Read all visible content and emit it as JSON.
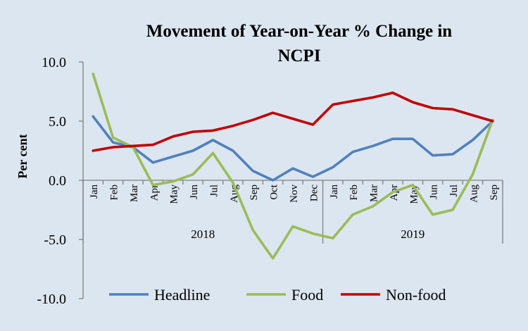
{
  "chart_data": {
    "type": "line",
    "title_line1": "Movement of Year-on-Year % Change in",
    "title_line2": "NCPI",
    "ylabel": "Per cent",
    "xlabel": "",
    "ylim": [
      -10,
      10
    ],
    "y_ticks": [
      "10.0",
      "5.0",
      "0.0",
      "-5.0",
      "-10.0"
    ],
    "y_tick_values": [
      10,
      5,
      0,
      -5,
      -10
    ],
    "categories": [
      "Jan",
      "Feb",
      "Mar",
      "Apr",
      "May",
      "Jun",
      "Jul",
      "Aug",
      "Sep",
      "Oct",
      "Nov",
      "Dec",
      "Jan",
      "Feb",
      "Mar",
      "Apr",
      "May",
      "Jun",
      "Jul",
      "Aug",
      "Sep"
    ],
    "year_groups": [
      {
        "label": "2018",
        "start": 0,
        "end": 11
      },
      {
        "label": "2019",
        "start": 12,
        "end": 20
      }
    ],
    "series": [
      {
        "name": "Headline",
        "color": "#4f81bd",
        "values": [
          5.4,
          3.2,
          2.8,
          1.5,
          2.0,
          2.5,
          3.4,
          2.5,
          0.8,
          0.0,
          1.0,
          0.3,
          1.1,
          2.4,
          2.9,
          3.5,
          3.5,
          2.1,
          2.2,
          3.4,
          5.0
        ]
      },
      {
        "name": "Food",
        "color": "#9bbb59",
        "values": [
          9.0,
          3.6,
          2.8,
          -0.4,
          -0.1,
          0.5,
          2.3,
          -0.2,
          -4.2,
          -6.6,
          -3.9,
          -4.5,
          -4.9,
          -2.9,
          -2.2,
          -1.0,
          -0.4,
          -2.9,
          -2.5,
          0.5,
          5.1
        ]
      },
      {
        "name": "Non-food",
        "color": "#c00000",
        "values": [
          2.5,
          2.8,
          2.9,
          3.0,
          3.7,
          4.1,
          4.2,
          4.6,
          5.1,
          5.7,
          5.2,
          4.7,
          6.4,
          6.7,
          7.0,
          7.4,
          6.6,
          6.1,
          6.0,
          5.5,
          5.0
        ]
      }
    ],
    "legend_position": "bottom",
    "grid": false
  }
}
